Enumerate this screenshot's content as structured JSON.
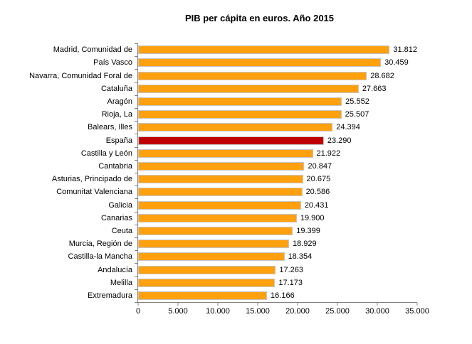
{
  "chart_data": {
    "type": "bar",
    "orientation": "horizontal",
    "title": "PIB per cápita en euros. Año 2015",
    "xlabel": "",
    "ylabel": "",
    "grid": false,
    "legend": false,
    "xlim": [
      0,
      35000
    ],
    "bar_color": "#FFA00F",
    "bar_border_color": "#C6C6C6",
    "axis_color": "#808080",
    "highlight": {
      "category": "España",
      "index": 7,
      "color": "#C00000"
    },
    "categories": [
      "Madrid, Comunidad de",
      "País Vasco",
      "Navarra, Comunidad Foral de",
      "Cataluña",
      "Aragón",
      "Rioja, La",
      "Balears, Illes",
      "España",
      "Castilla y León",
      "Cantabria",
      "Asturias, Principado de",
      "Comunitat Valenciana",
      "Galicia",
      "Canarias",
      "Ceuta",
      "Murcia, Región de",
      "Castilla-la Mancha",
      "Andalucía",
      "Melilla",
      "Extremadura"
    ],
    "values": [
      31812,
      30459,
      28682,
      27663,
      25552,
      25507,
      24394,
      23290,
      21922,
      20847,
      20675,
      20586,
      20431,
      19900,
      19399,
      18929,
      18354,
      17263,
      17173,
      16166
    ],
    "value_labels": [
      "31.812",
      "30.459",
      "28.682",
      "27.663",
      "25.552",
      "25.507",
      "24.394",
      "23.290",
      "21.922",
      "20.847",
      "20.675",
      "20.586",
      "20.431",
      "19.900",
      "19.399",
      "18.929",
      "18.354",
      "17.263",
      "17.173",
      "16.166"
    ],
    "x_ticks": [
      {
        "value": 0,
        "label": "0"
      },
      {
        "value": 5000,
        "label": "5.000"
      },
      {
        "value": 10000,
        "label": "10.000"
      },
      {
        "value": 15000,
        "label": "15.000"
      },
      {
        "value": 20000,
        "label": "20.000"
      },
      {
        "value": 25000,
        "label": "25.000"
      },
      {
        "value": 30000,
        "label": "30.000"
      },
      {
        "value": 35000,
        "label": "35.000"
      }
    ]
  }
}
